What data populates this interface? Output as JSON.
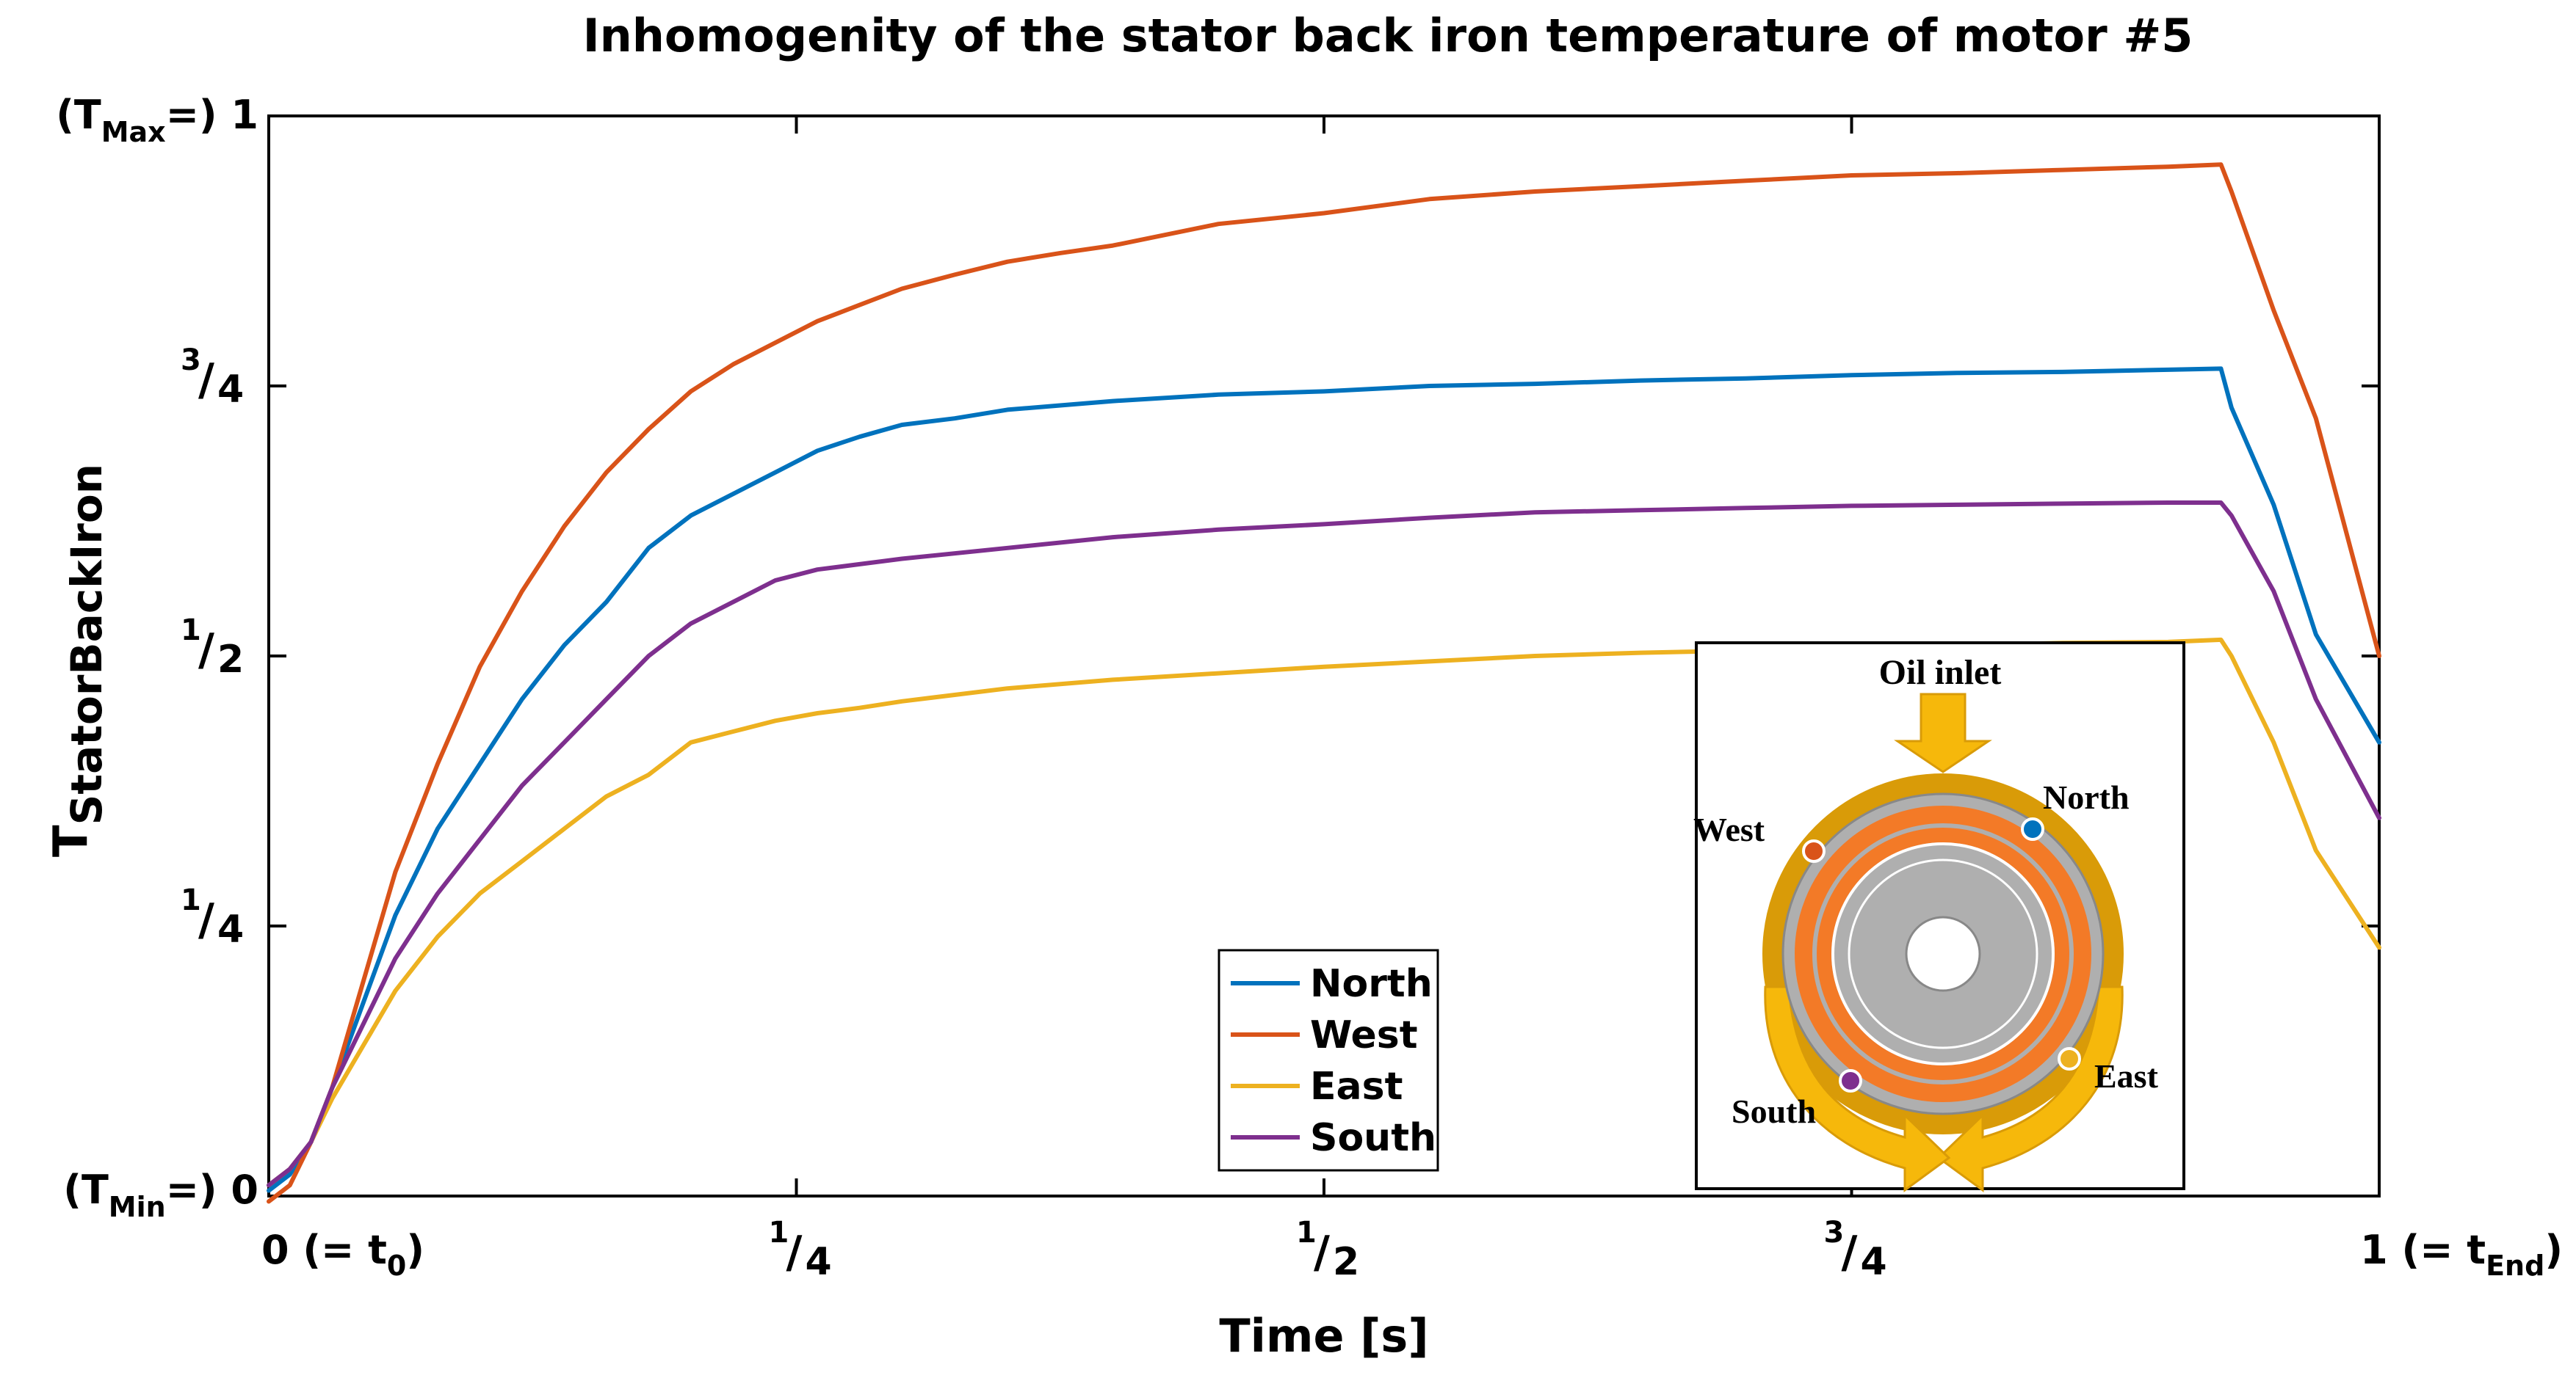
{
  "chart_data": {
    "type": "line",
    "title": "Inhomogenity of the stator back iron temperature of motor #5",
    "xlabel": "Time [s]",
    "ylabel": {
      "main": "T",
      "sub": "StatorBackIron"
    },
    "xlim": [
      0,
      1
    ],
    "ylim": [
      0,
      1
    ],
    "xticks": [
      {
        "value": 0,
        "main": "0 (= t",
        "sub": "0",
        "tail": ")"
      },
      {
        "value": 0.25,
        "num": "1",
        "den": "4"
      },
      {
        "value": 0.5,
        "num": "1",
        "den": "2"
      },
      {
        "value": 0.75,
        "num": "3",
        "den": "4"
      },
      {
        "value": 1,
        "main": "1 (= t",
        "sub": "End",
        "tail": ")"
      }
    ],
    "yticks": [
      {
        "value": 0,
        "pre": "(T",
        "sub": "Min",
        "post": "=) 0"
      },
      {
        "value": 0.25,
        "num": "1",
        "den": "4"
      },
      {
        "value": 0.5,
        "num": "1",
        "den": "2"
      },
      {
        "value": 0.75,
        "num": "3",
        "den": "4"
      },
      {
        "value": 1,
        "pre": "(T",
        "sub": "Max",
        "post": "=) 1"
      }
    ],
    "grid": false,
    "legend_position": "bottom-center",
    "series": [
      {
        "name": "North",
        "color": "#0072BD",
        "points": [
          [
            0,
            0.005
          ],
          [
            0.01,
            0.02
          ],
          [
            0.02,
            0.05
          ],
          [
            0.03,
            0.1
          ],
          [
            0.045,
            0.18
          ],
          [
            0.06,
            0.26
          ],
          [
            0.08,
            0.34
          ],
          [
            0.1,
            0.4
          ],
          [
            0.12,
            0.46
          ],
          [
            0.14,
            0.51
          ],
          [
            0.16,
            0.55
          ],
          [
            0.18,
            0.6
          ],
          [
            0.2,
            0.63
          ],
          [
            0.22,
            0.65
          ],
          [
            0.24,
            0.67
          ],
          [
            0.26,
            0.69
          ],
          [
            0.28,
            0.703
          ],
          [
            0.3,
            0.714
          ],
          [
            0.325,
            0.72
          ],
          [
            0.35,
            0.728
          ],
          [
            0.375,
            0.732
          ],
          [
            0.4,
            0.736
          ],
          [
            0.45,
            0.742
          ],
          [
            0.5,
            0.745
          ],
          [
            0.55,
            0.75
          ],
          [
            0.6,
            0.752
          ],
          [
            0.65,
            0.755
          ],
          [
            0.7,
            0.757
          ],
          [
            0.75,
            0.76
          ],
          [
            0.8,
            0.762
          ],
          [
            0.85,
            0.763
          ],
          [
            0.9,
            0.765
          ],
          [
            0.925,
            0.766
          ],
          [
            0.93,
            0.73
          ],
          [
            0.95,
            0.64
          ],
          [
            0.97,
            0.52
          ],
          [
            1,
            0.42
          ]
        ]
      },
      {
        "name": "West",
        "color": "#D95319",
        "points": [
          [
            0,
            -0.005
          ],
          [
            0.01,
            0.01
          ],
          [
            0.02,
            0.05
          ],
          [
            0.03,
            0.1
          ],
          [
            0.045,
            0.2
          ],
          [
            0.06,
            0.3
          ],
          [
            0.08,
            0.4
          ],
          [
            0.1,
            0.49
          ],
          [
            0.12,
            0.56
          ],
          [
            0.14,
            0.62
          ],
          [
            0.16,
            0.67
          ],
          [
            0.18,
            0.71
          ],
          [
            0.2,
            0.745
          ],
          [
            0.22,
            0.77
          ],
          [
            0.24,
            0.79
          ],
          [
            0.26,
            0.81
          ],
          [
            0.28,
            0.825
          ],
          [
            0.3,
            0.84
          ],
          [
            0.325,
            0.853
          ],
          [
            0.35,
            0.865
          ],
          [
            0.375,
            0.873
          ],
          [
            0.4,
            0.88
          ],
          [
            0.45,
            0.9
          ],
          [
            0.5,
            0.91
          ],
          [
            0.55,
            0.923
          ],
          [
            0.6,
            0.93
          ],
          [
            0.65,
            0.935
          ],
          [
            0.7,
            0.94
          ],
          [
            0.75,
            0.945
          ],
          [
            0.8,
            0.947
          ],
          [
            0.85,
            0.95
          ],
          [
            0.9,
            0.953
          ],
          [
            0.925,
            0.955
          ],
          [
            0.93,
            0.93
          ],
          [
            0.95,
            0.82
          ],
          [
            0.97,
            0.72
          ],
          [
            1,
            0.5
          ]
        ]
      },
      {
        "name": "East",
        "color": "#EDB120",
        "points": [
          [
            0,
            0.01
          ],
          [
            0.01,
            0.025
          ],
          [
            0.02,
            0.05
          ],
          [
            0.03,
            0.09
          ],
          [
            0.045,
            0.14
          ],
          [
            0.06,
            0.19
          ],
          [
            0.08,
            0.24
          ],
          [
            0.1,
            0.28
          ],
          [
            0.12,
            0.31
          ],
          [
            0.14,
            0.34
          ],
          [
            0.16,
            0.37
          ],
          [
            0.18,
            0.39
          ],
          [
            0.2,
            0.42
          ],
          [
            0.22,
            0.43
          ],
          [
            0.24,
            0.44
          ],
          [
            0.26,
            0.447
          ],
          [
            0.28,
            0.452
          ],
          [
            0.3,
            0.458
          ],
          [
            0.35,
            0.47
          ],
          [
            0.4,
            0.478
          ],
          [
            0.45,
            0.484
          ],
          [
            0.5,
            0.49
          ],
          [
            0.55,
            0.495
          ],
          [
            0.6,
            0.5
          ],
          [
            0.65,
            0.503
          ],
          [
            0.7,
            0.505
          ],
          [
            0.75,
            0.508
          ],
          [
            0.8,
            0.51
          ],
          [
            0.85,
            0.512
          ],
          [
            0.9,
            0.513
          ],
          [
            0.925,
            0.515
          ],
          [
            0.93,
            0.5
          ],
          [
            0.95,
            0.42
          ],
          [
            0.97,
            0.32
          ],
          [
            1,
            0.23
          ]
        ]
      },
      {
        "name": "South",
        "color": "#7E2F8E",
        "points": [
          [
            0,
            0.01
          ],
          [
            0.01,
            0.025
          ],
          [
            0.02,
            0.05
          ],
          [
            0.03,
            0.1
          ],
          [
            0.045,
            0.16
          ],
          [
            0.06,
            0.22
          ],
          [
            0.08,
            0.28
          ],
          [
            0.1,
            0.33
          ],
          [
            0.12,
            0.38
          ],
          [
            0.14,
            0.42
          ],
          [
            0.16,
            0.46
          ],
          [
            0.18,
            0.5
          ],
          [
            0.2,
            0.53
          ],
          [
            0.22,
            0.55
          ],
          [
            0.24,
            0.57
          ],
          [
            0.26,
            0.58
          ],
          [
            0.28,
            0.585
          ],
          [
            0.3,
            0.59
          ],
          [
            0.35,
            0.6
          ],
          [
            0.4,
            0.61
          ],
          [
            0.45,
            0.617
          ],
          [
            0.5,
            0.622
          ],
          [
            0.55,
            0.628
          ],
          [
            0.6,
            0.633
          ],
          [
            0.65,
            0.635
          ],
          [
            0.7,
            0.637
          ],
          [
            0.75,
            0.639
          ],
          [
            0.8,
            0.64
          ],
          [
            0.85,
            0.641
          ],
          [
            0.9,
            0.642
          ],
          [
            0.925,
            0.642
          ],
          [
            0.93,
            0.63
          ],
          [
            0.95,
            0.56
          ],
          [
            0.97,
            0.46
          ],
          [
            1,
            0.35
          ]
        ]
      }
    ],
    "inset": {
      "title": "Oil inlet",
      "labels": {
        "north": "North",
        "west": "West",
        "east": "East",
        "south": "South"
      },
      "colors": {
        "north": "#0072BD",
        "west": "#D95319",
        "east": "#EDB120",
        "south": "#7E2F8E",
        "oil": "#F6B80B",
        "oil_dark": "#D99B08",
        "steel": "#AFAFAF",
        "copper": "#F37A27"
      }
    }
  }
}
